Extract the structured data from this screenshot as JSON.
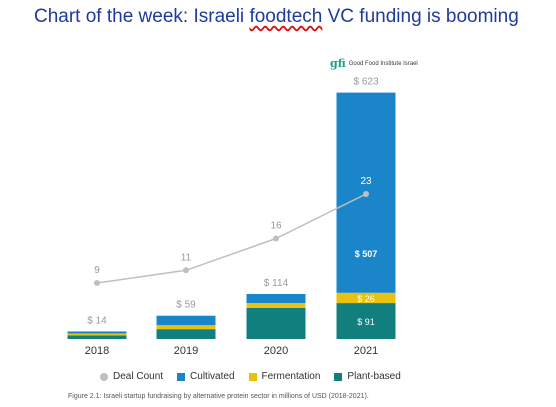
{
  "header": {
    "title_part1": "Chart of the week: Israeli ",
    "title_part2": "foodtech",
    "title_part3": " VC funding is booming"
  },
  "logo": {
    "mark": "gfi",
    "text": "Good Food Institute Israel"
  },
  "caption": "Figure 2.1: Israeli startup fundraising by alternative protein sector in millions of USD (2018-2021).",
  "colors": {
    "cultivated": "#1a86c9",
    "fermentation": "#e9c20f",
    "plant_based": "#127f7f",
    "deal_count": "#bfbfbf"
  },
  "chart_data": {
    "type": "bar",
    "stacked": true,
    "categories": [
      "2018",
      "2019",
      "2020",
      "2021"
    ],
    "series": [
      {
        "name": "Plant-based",
        "values": [
          9,
          25,
          79,
          91
        ]
      },
      {
        "name": "Fermentation",
        "values": [
          2,
          10,
          12,
          26
        ]
      },
      {
        "name": "Cultivated",
        "values": [
          3,
          24,
          23,
          507
        ]
      }
    ],
    "totals": [
      14,
      59,
      114,
      623
    ],
    "total_labels": [
      "$ 14",
      "$ 59",
      "$ 114",
      "$ 623"
    ],
    "segment_labels_2021": {
      "cultivated": "$ 507",
      "fermentation": "$ 26",
      "plant_based": "$ 91"
    },
    "line_series": {
      "name": "Deal Count",
      "values": [
        9,
        11,
        16,
        23
      ]
    },
    "legend": [
      "Deal Count",
      "Cultivated",
      "Fermentation",
      "Plant-based"
    ],
    "legend_position": "bottom",
    "grid": false,
    "ylim": [
      0,
      623
    ]
  }
}
